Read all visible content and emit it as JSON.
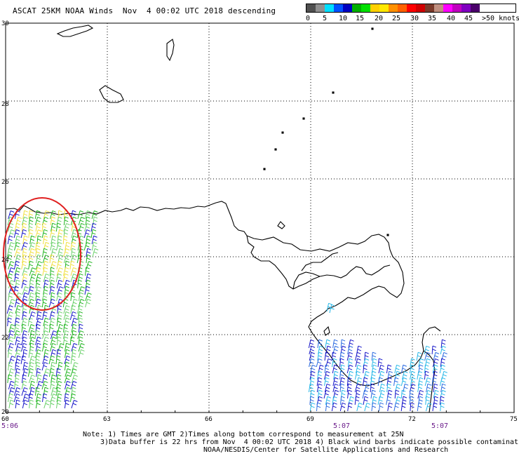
{
  "header": {
    "title": "ASCAT 25KM NOAA Winds  Nov  4 00:02 UTC 2018 descending"
  },
  "legend": {
    "unit_label": ">50 knots",
    "stops": [
      {
        "label": "0",
        "color": "#505050"
      },
      {
        "label": "",
        "color": "#909090"
      },
      {
        "label": "5",
        "color": "#00e0ff"
      },
      {
        "label": "",
        "color": "#0050ff"
      },
      {
        "label": "10",
        "color": "#0000c0"
      },
      {
        "label": "",
        "color": "#00b000"
      },
      {
        "label": "15",
        "color": "#00e000"
      },
      {
        "label": "",
        "color": "#ffd000"
      },
      {
        "label": "20",
        "color": "#ffe800"
      },
      {
        "label": "",
        "color": "#ff9000"
      },
      {
        "label": "25",
        "color": "#ff6000"
      },
      {
        "label": "",
        "color": "#ff0000"
      },
      {
        "label": "30",
        "color": "#d00000"
      },
      {
        "label": "",
        "color": "#7a3a2a"
      },
      {
        "label": "35",
        "color": "#c09080"
      },
      {
        "label": "",
        "color": "#ff00ff"
      },
      {
        "label": "40",
        "color": "#c000c0"
      },
      {
        "label": "",
        "color": "#8000c0"
      },
      {
        "label": "45",
        "color": "#4a006a"
      }
    ],
    "tick_labels": [
      "0",
      "5",
      "10",
      "15",
      "20",
      "25",
      "30",
      "35",
      "40",
      "45",
      ">50 knots"
    ]
  },
  "map": {
    "lon_labels": [
      "60",
      "63",
      "66",
      "69",
      "72",
      "75"
    ],
    "lat_labels": [
      "30",
      "28",
      "26",
      "24",
      "22",
      "20"
    ],
    "time_labels": [
      "5:06",
      "5:07",
      "5:07"
    ],
    "colors": {
      "coast": "#000000",
      "grid": "#000000",
      "annotation_circle": "#e02020",
      "wind_blue": "#1414c8",
      "wind_green": "#1fb41f",
      "wind_lightgreen": "#6ad06a",
      "wind_yellow": "#f0e040",
      "wind_cyan": "#28b8e8",
      "time_label": "#6a1a8a"
    }
  },
  "notes": {
    "line1": "Note: 1) Times are GMT 2)Times along bottom correspond to measurement at 25N",
    "line2": "3)Data buffer is 22 hrs from Nov  4 00:02 UTC 2018 4) Black wind barbs indicate possible contamination",
    "line3": "NOAA/NESDIS/Center for Satellite Applications and Research"
  }
}
